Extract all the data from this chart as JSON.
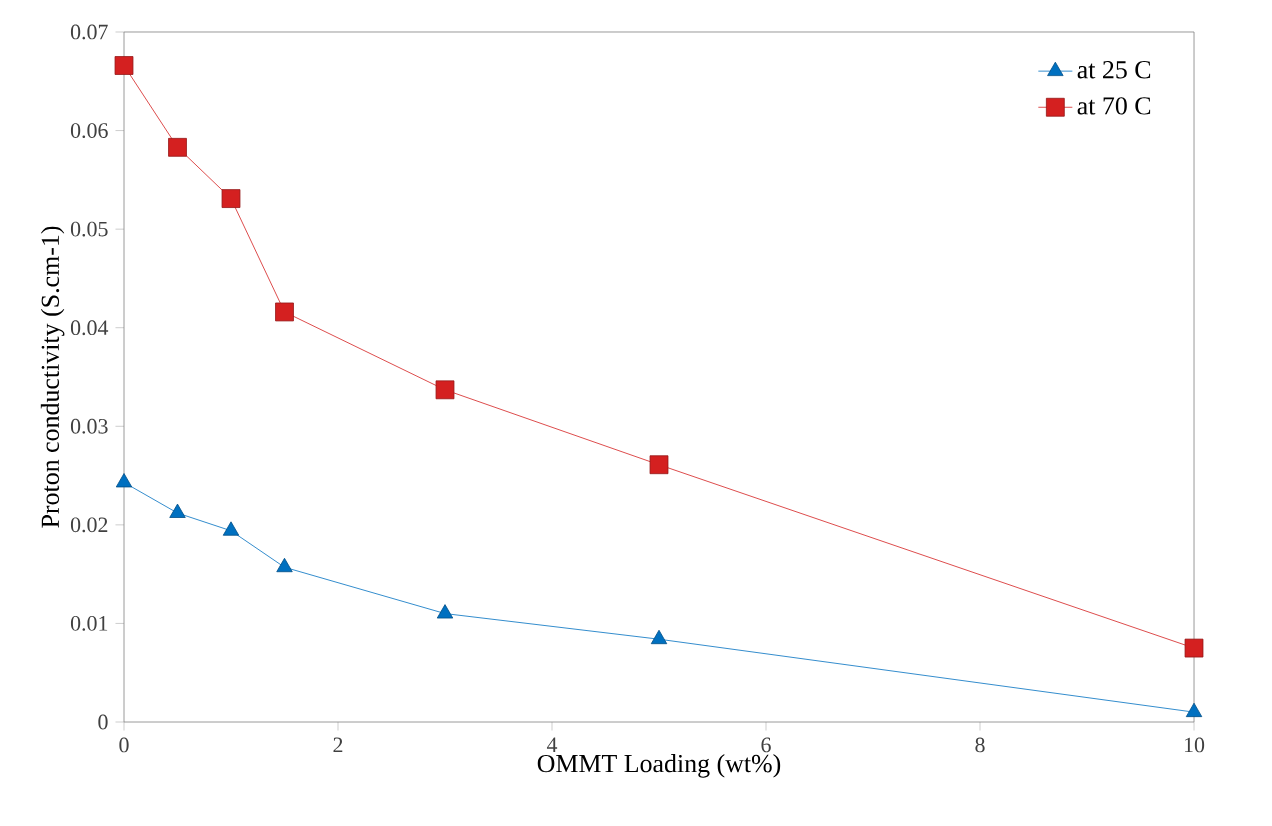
{
  "chart_data": {
    "type": "line",
    "xlabel": "OMMT Loading (wt%)",
    "ylabel": "Proton conductivity (S.cm-1)",
    "x": [
      0,
      0.5,
      1,
      1.5,
      3,
      5,
      10
    ],
    "series": [
      {
        "name": "at 25 C",
        "color": "#0070c0",
        "marker": "triangle",
        "values": [
          0.0243,
          0.0212,
          0.0194,
          0.0157,
          0.011,
          0.0084,
          0.001
        ]
      },
      {
        "name": "at 70 C",
        "color": "#d42020",
        "marker": "square",
        "values": [
          0.0666,
          0.0583,
          0.0531,
          0.0416,
          0.0337,
          0.0261,
          0.0075
        ]
      }
    ],
    "xlim": [
      0,
      10
    ],
    "xticks": [
      0,
      2,
      4,
      6,
      8,
      10
    ],
    "ylim": [
      0,
      0.07
    ],
    "yticks": [
      0,
      0.01,
      0.02,
      0.03,
      0.04,
      0.05,
      0.06,
      0.07
    ],
    "grid": false,
    "legend": "top right",
    "line_style": "solid"
  }
}
